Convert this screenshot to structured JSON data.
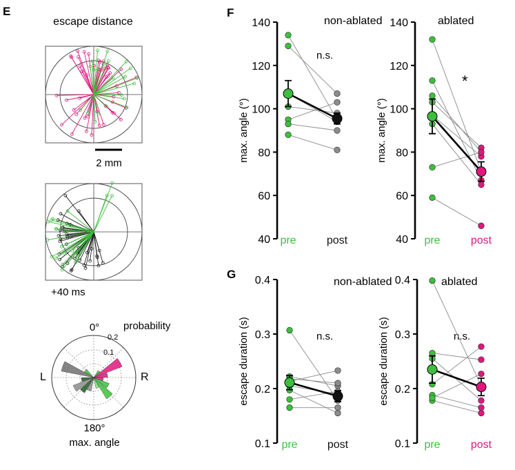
{
  "colors": {
    "green": "#3dbf3d",
    "magenta": "#e0187e",
    "black": "#111111",
    "gray": "#8c8c8c",
    "dark_green": "#1f5a1f",
    "light_green": "#7fdc7f"
  },
  "panel_e": {
    "letter": "E",
    "escape_title": "escape distance",
    "scale_label": "2 mm",
    "time_label": "+40 ms",
    "polar": {
      "top_label": "0°",
      "bottom_label": "180°",
      "left_label": "L",
      "right_label": "R",
      "prob_label": "probability",
      "ring_inner": "0.1",
      "ring_outer": "0.2",
      "xlabel": "max. angle"
    }
  },
  "chart_data": [
    {
      "type": "scatter",
      "panel": "F",
      "title": "non-ablated",
      "ylabel": "max. angle (°)",
      "categories": [
        "pre",
        "post"
      ],
      "ylim": [
        40,
        140
      ],
      "yticks": [
        "40",
        "60",
        "80",
        "100",
        "120",
        "140"
      ],
      "paired_values": [
        [
          134,
          95
        ],
        [
          129,
          107
        ],
        [
          101,
          98
        ],
        [
          95,
          103
        ],
        [
          93,
          90
        ],
        [
          88,
          81
        ],
        [
          107,
          94
        ]
      ],
      "mean": [
        107,
        95.5
      ],
      "sem": [
        6,
        2.5
      ],
      "annotation": "n.s."
    },
    {
      "type": "scatter",
      "panel": "",
      "title": "ablated",
      "ylabel": "max. angle (°)",
      "categories": [
        "pre",
        "post"
      ],
      "ylim": [
        40,
        140
      ],
      "yticks": [
        "40",
        "60",
        "80",
        "100",
        "120",
        "140"
      ],
      "paired_values": [
        [
          132,
          71
        ],
        [
          113,
          67
        ],
        [
          106,
          80
        ],
        [
          103,
          82
        ],
        [
          97,
          78
        ],
        [
          93,
          65
        ],
        [
          73,
          80
        ],
        [
          59,
          46
        ]
      ],
      "mean": [
        96.5,
        71
      ],
      "sem": [
        8,
        4.5
      ],
      "annotation": "*"
    },
    {
      "type": "scatter",
      "panel": "G",
      "title": "non-ablated",
      "ylabel": "escape duration (s)",
      "categories": [
        "pre",
        "post"
      ],
      "ylim": [
        0.1,
        0.4
      ],
      "yticks": [
        "0.1",
        "0.2",
        "0.3",
        "0.4"
      ],
      "paired_values": [
        [
          0.307,
          0.178
        ],
        [
          0.222,
          0.205
        ],
        [
          0.213,
          0.233
        ],
        [
          0.205,
          0.19
        ],
        [
          0.197,
          0.155
        ],
        [
          0.18,
          0.195
        ],
        [
          0.165,
          0.165
        ],
        [
          0.218,
          0.21
        ]
      ],
      "mean": [
        0.211,
        0.186
      ],
      "sem": [
        0.013,
        0.01
      ],
      "annotation": "n.s."
    },
    {
      "type": "scatter",
      "panel": "",
      "title": "ablated",
      "ylabel": "escape duration (s)",
      "categories": [
        "pre",
        "post"
      ],
      "ylim": [
        0.1,
        0.4
      ],
      "yticks": [
        "0.1",
        "0.2",
        "0.3",
        "0.4"
      ],
      "paired_values": [
        [
          0.398,
          0.205
        ],
        [
          0.265,
          0.253
        ],
        [
          0.255,
          0.178
        ],
        [
          0.208,
          0.277
        ],
        [
          0.188,
          0.165
        ],
        [
          0.178,
          0.155
        ],
        [
          0.183,
          0.227
        ]
      ],
      "mean": [
        0.235,
        0.203
      ],
      "sem": [
        0.025,
        0.016
      ],
      "annotation": "n.s."
    }
  ]
}
